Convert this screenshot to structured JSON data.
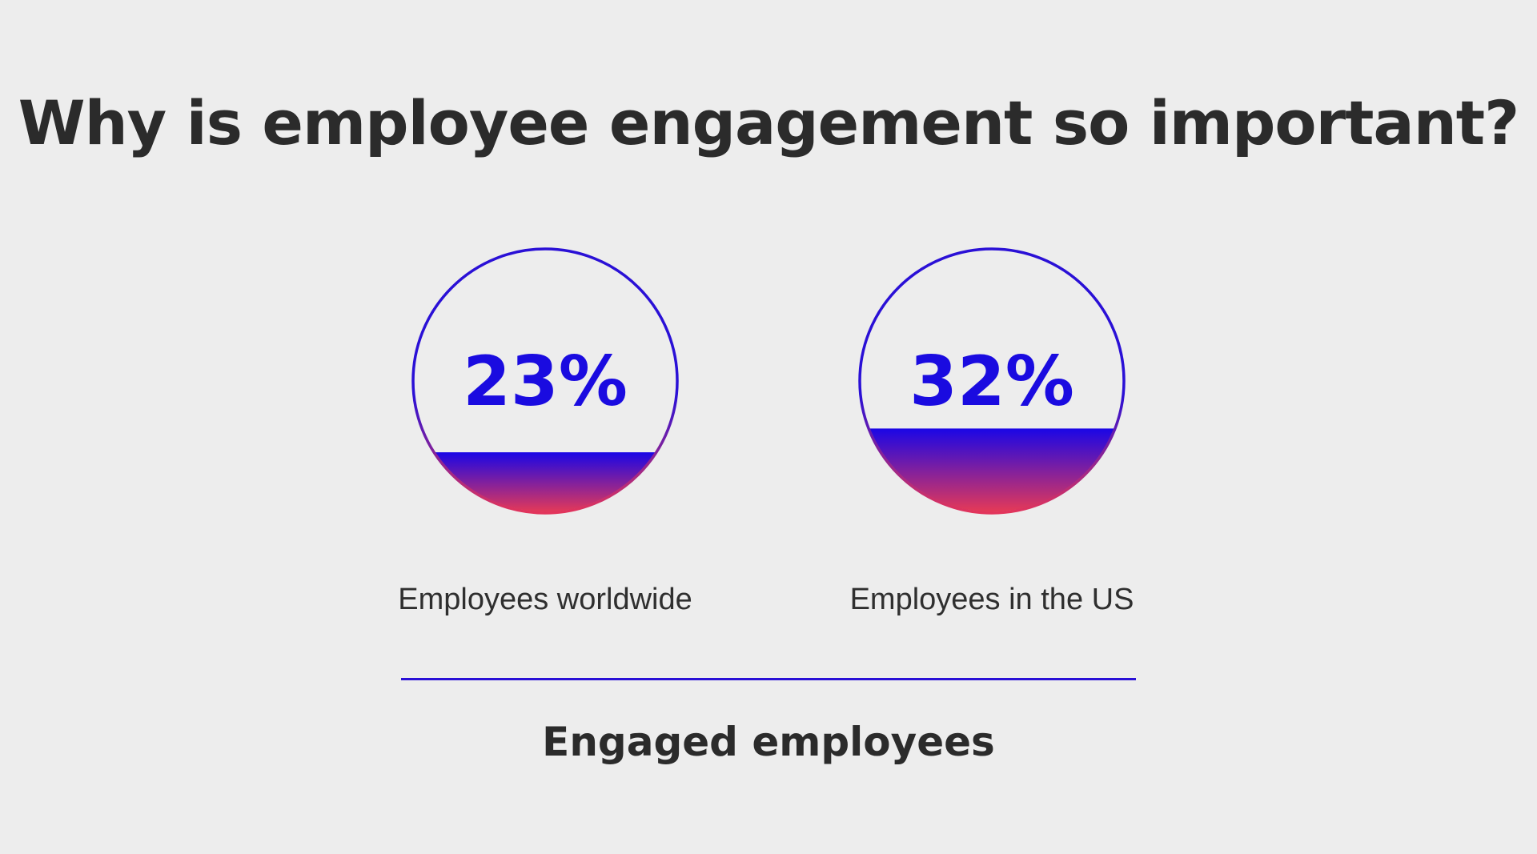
{
  "title": "Why is employee engagement so important?",
  "chart_data": {
    "type": "gauge",
    "title": "Why is employee engagement so important?",
    "category_label": "Engaged employees",
    "items": [
      {
        "label": "Employees worldwide",
        "value": 23,
        "display": "23%"
      },
      {
        "label": "Employees in the US",
        "value": 32,
        "display": "32%"
      }
    ],
    "unit": "%",
    "colors": {
      "text_accent": "#1a0be0",
      "fill_top": "#1a06e6",
      "fill_bottom": "#e83a55",
      "ring_top": "#2a10d6",
      "ring_bottom": "#e2345b"
    }
  },
  "footer_label": "Engaged employees",
  "colors": {
    "background": "#ededed",
    "divider": "#2a10d6",
    "text": "#2b2b2b"
  }
}
